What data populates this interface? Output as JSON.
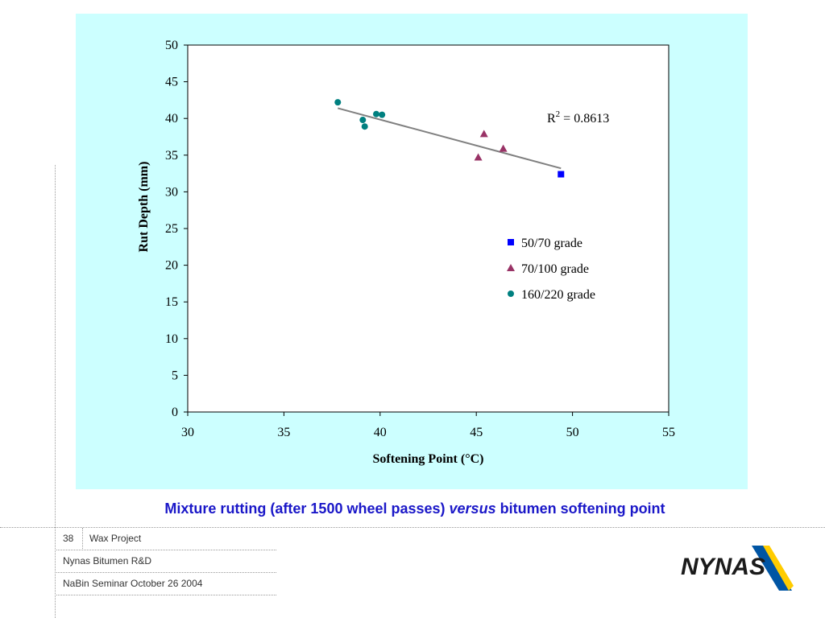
{
  "chart_data": {
    "type": "scatter",
    "title": "",
    "xlabel": "Softening Point (°C)",
    "ylabel": "Rut Depth (mm)",
    "xlim": [
      30,
      55
    ],
    "ylim": [
      0,
      50
    ],
    "x_ticks": [
      "30",
      "35",
      "40",
      "45",
      "50",
      "55"
    ],
    "y_ticks": [
      "0",
      "5",
      "10",
      "15",
      "20",
      "25",
      "30",
      "35",
      "40",
      "45",
      "50"
    ],
    "grid": false,
    "legend_position": "inside right",
    "series": [
      {
        "name": "50/70 grade",
        "marker": "square",
        "color": "#0000ff",
        "points": [
          [
            49.4,
            32.4
          ]
        ]
      },
      {
        "name": "70/100 grade",
        "marker": "triangle",
        "color": "#993366",
        "points": [
          [
            45.1,
            34.7
          ],
          [
            45.4,
            37.9
          ],
          [
            46.4,
            35.9
          ]
        ]
      },
      {
        "name": "160/220 grade",
        "marker": "circle",
        "color": "#008080",
        "points": [
          [
            37.8,
            42.2
          ],
          [
            39.1,
            39.8
          ],
          [
            39.2,
            38.9
          ],
          [
            39.8,
            40.6
          ],
          [
            40.1,
            40.5
          ]
        ]
      }
    ],
    "trendline": {
      "x1": 37.8,
      "y1": 41.4,
      "x2": 49.4,
      "y2": 33.2,
      "color": "#808080"
    },
    "annotation": {
      "r2_label": "R",
      "r2_sup": "2",
      "r2_value": " = 0.8613"
    }
  },
  "caption": {
    "part1": "Mixture rutting (after 1500 wheel passes) ",
    "part2": "versus",
    "part3": " bitumen softening point"
  },
  "footer": {
    "page_number": "38",
    "project": "Wax Project",
    "organization": "Nynas Bitumen R&D",
    "event": "NaBin Seminar October 26 2004"
  },
  "logo": {
    "text": "NYNAS"
  },
  "colors": {
    "panel_bg": "#ccffff",
    "caption": "#1a17c8",
    "logo_blue": "#0055a4",
    "logo_yellow": "#ffcc00"
  }
}
